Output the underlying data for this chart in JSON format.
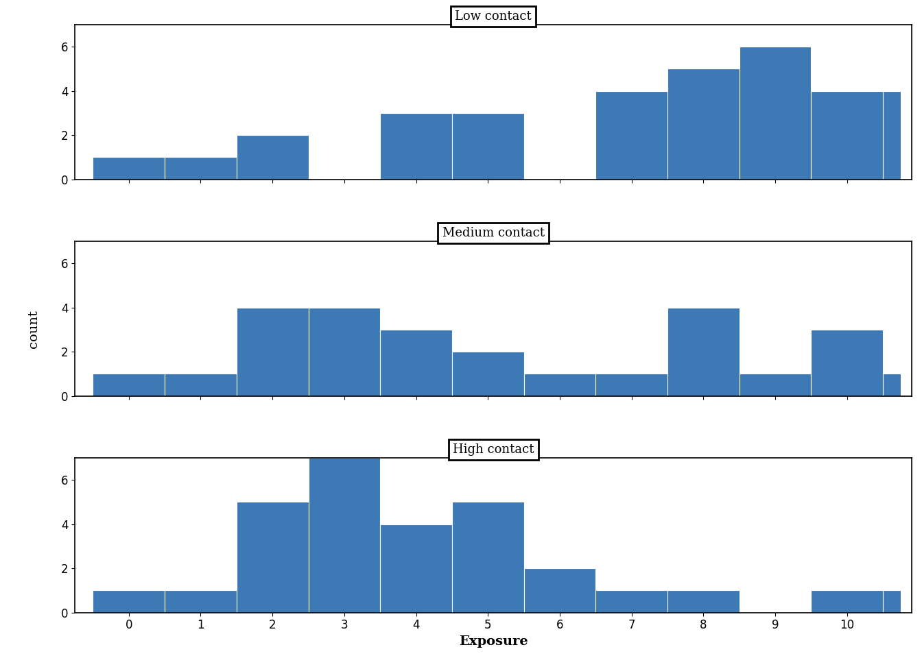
{
  "panels": [
    {
      "title": "Low contact",
      "bin_edges": [
        -0.5,
        0.5,
        1.5,
        2.5,
        3.5,
        4.5,
        5.5,
        6.5,
        7.5,
        8.5,
        9.5,
        10.5,
        10.75
      ],
      "counts": [
        1,
        1,
        2,
        0,
        3,
        3,
        0,
        4,
        5,
        6,
        4,
        4
      ]
    },
    {
      "title": "Medium contact",
      "bin_edges": [
        -0.5,
        0.5,
        1.5,
        2.5,
        3.5,
        4.5,
        5.5,
        6.5,
        7.5,
        8.5,
        9.5,
        10.5,
        10.75
      ],
      "counts": [
        1,
        1,
        4,
        4,
        3,
        2,
        1,
        1,
        4,
        1,
        3,
        1
      ]
    },
    {
      "title": "High contact",
      "bin_edges": [
        -0.5,
        0.5,
        1.5,
        2.5,
        3.5,
        4.5,
        5.5,
        6.5,
        7.5,
        8.5,
        9.5,
        10.5,
        10.75
      ],
      "counts": [
        1,
        1,
        5,
        7,
        4,
        5,
        2,
        1,
        1,
        0,
        1,
        1
      ]
    }
  ],
  "bar_color": "#3d7ab5",
  "ylabel": "count",
  "xlabel": "Exposure",
  "ylim": [
    0,
    7
  ],
  "xlim": [
    -0.75,
    10.9
  ],
  "xticks": [
    0,
    1,
    2,
    3,
    4,
    5,
    6,
    7,
    8,
    9,
    10
  ],
  "yticks": [
    0,
    2,
    4,
    6
  ],
  "title_fontsize": 13,
  "axis_fontsize": 14,
  "tick_fontsize": 12
}
